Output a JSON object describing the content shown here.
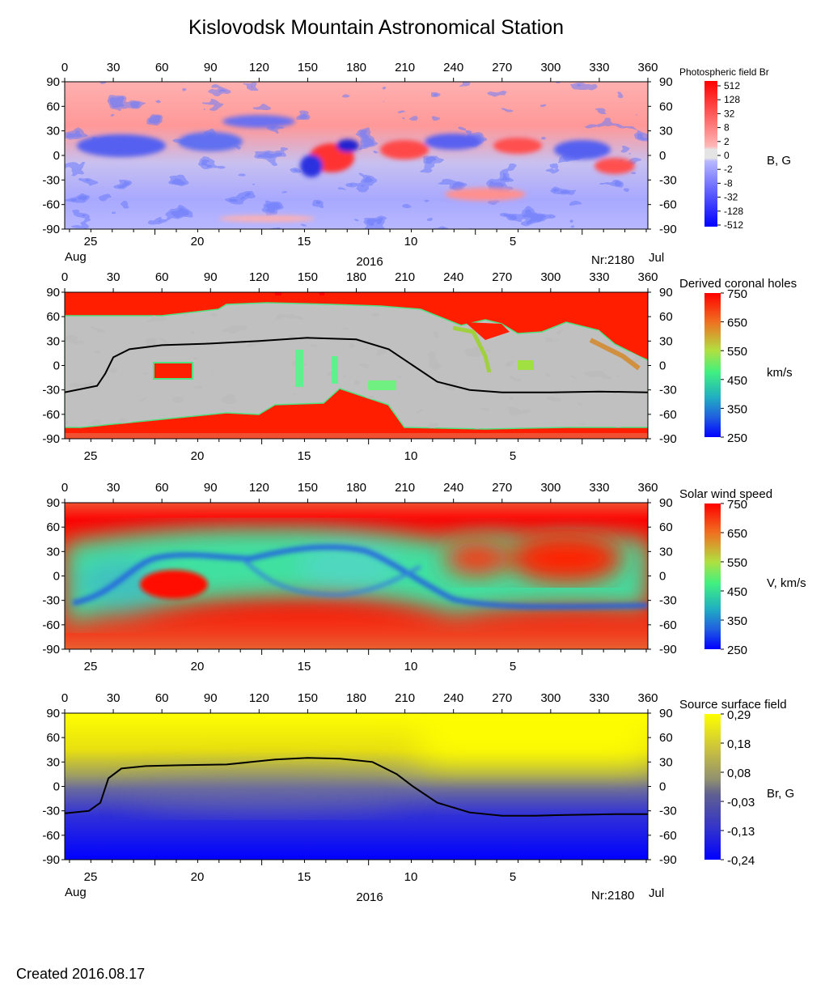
{
  "title": "Kislovodsk Mountain Astronomical Station",
  "created": "Created  2016.08.17",
  "x_ticks": [
    "0",
    "30",
    "60",
    "90",
    "120",
    "150",
    "180",
    "210",
    "240",
    "270",
    "300",
    "330",
    "360"
  ],
  "y_ticks": [
    "90",
    "60",
    "30",
    "0",
    "-30",
    "-60",
    "-90"
  ],
  "date_ticks": [
    "25",
    "20",
    "15",
    "10",
    "5"
  ],
  "month_start": "Aug",
  "month_end": "Jul",
  "year": "2016",
  "rotation": "Nr:2180",
  "panels": [
    {
      "id": "photospheric-field",
      "colorbar_title": "Photospheric field Br",
      "unit": "B, G",
      "colorbar_ticks": [
        "512",
        "128",
        "32",
        "8",
        "2",
        "0",
        "-2",
        "-8",
        "-32",
        "-128",
        "-512"
      ],
      "colors": {
        "positive": "#ff0000",
        "negative": "#0000ff",
        "zero": "#e6e6e6"
      }
    },
    {
      "id": "coronal-holes",
      "colorbar_title": "Derived coronal holes",
      "unit": "km/s",
      "colorbar_ticks": [
        "750",
        "650",
        "550",
        "450",
        "350",
        "250"
      ],
      "colors": {
        "high": "#ff0000",
        "low": "#0000ff",
        "light-gray": "#c0c0c0",
        "dark-gray": "#808080"
      }
    },
    {
      "id": "solar-wind-speed",
      "colorbar_title": "Solar wind speed",
      "unit": "V, km/s",
      "colorbar_ticks": [
        "750",
        "650",
        "550",
        "450",
        "350",
        "250"
      ],
      "colors": {
        "high": "#ff0000",
        "low": "#0000ff"
      }
    },
    {
      "id": "source-surface-field",
      "colorbar_title": "Source surface field",
      "unit": "Br, G",
      "colorbar_ticks": [
        "0,29",
        "0,18",
        "0,08",
        "-0,03",
        "-0,13",
        "-0,24"
      ],
      "colors": {
        "positive": "#ffff00",
        "negative": "#0000ff",
        "zero": "#808080"
      }
    }
  ],
  "chart_data": [
    {
      "type": "heatmap",
      "xlim": [
        0,
        360
      ],
      "ylim": [
        -90,
        90
      ],
      "colorbar_range": [
        -512,
        512
      ]
    },
    {
      "type": "heatmap",
      "xlim": [
        0,
        360
      ],
      "ylim": [
        -90,
        90
      ],
      "colorbar_range": [
        250,
        750
      ],
      "neutral_line": {
        "x": [
          0,
          20,
          25,
          30,
          40,
          60,
          90,
          120,
          150,
          180,
          200,
          215,
          230,
          250,
          270,
          300,
          330,
          360
        ],
        "y": [
          -33,
          -25,
          -10,
          10,
          20,
          25,
          27,
          30,
          34,
          32,
          20,
          0,
          -20,
          -30,
          -33,
          -33,
          -32,
          -33
        ]
      }
    },
    {
      "type": "heatmap",
      "xlim": [
        0,
        360
      ],
      "ylim": [
        -90,
        90
      ],
      "colorbar_range": [
        250,
        750
      ]
    },
    {
      "type": "heatmap",
      "xlim": [
        0,
        360
      ],
      "ylim": [
        -90,
        90
      ],
      "colorbar_range": [
        -0.24,
        0.29
      ],
      "neutral_line": {
        "x": [
          0,
          15,
          22,
          27,
          35,
          50,
          70,
          100,
          130,
          150,
          170,
          190,
          205,
          215,
          230,
          250,
          270,
          290,
          310,
          340,
          360
        ],
        "y": [
          -33,
          -30,
          -20,
          10,
          22,
          25,
          26,
          27,
          33,
          35,
          34,
          30,
          15,
          0,
          -20,
          -32,
          -36,
          -36,
          -35,
          -34,
          -34
        ]
      }
    }
  ]
}
